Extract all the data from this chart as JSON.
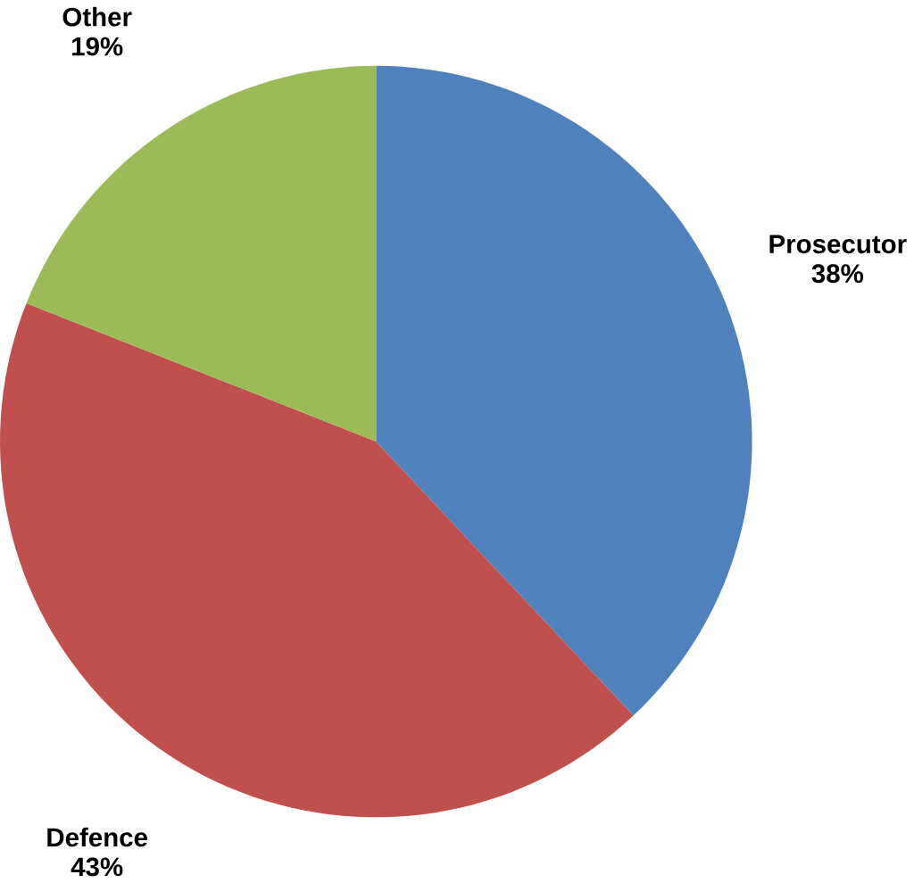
{
  "chart_data": {
    "type": "pie",
    "categories": [
      "Prosecutor",
      "Defence",
      "Other"
    ],
    "values": [
      38,
      43,
      19
    ],
    "value_labels": [
      "38%",
      "43%",
      "19%"
    ],
    "colors": [
      "#4f81bd",
      "#c0504d",
      "#9bbb59"
    ]
  }
}
